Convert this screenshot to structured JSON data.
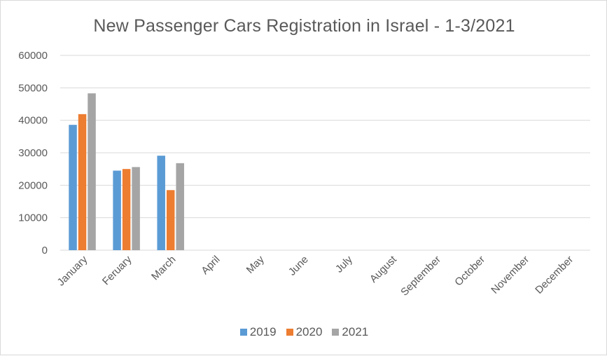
{
  "chart_data": {
    "type": "bar",
    "title": "New Passenger Cars Registration in Israel - 1-3/2021",
    "categories": [
      "January",
      "Feruary",
      "March",
      "April",
      "May",
      "June",
      "July",
      "August",
      "September",
      "October",
      "November",
      "December"
    ],
    "series": [
      {
        "name": "2019",
        "color": "#5B9BD5",
        "values": [
          38600,
          24500,
          29100,
          null,
          null,
          null,
          null,
          null,
          null,
          null,
          null,
          null
        ]
      },
      {
        "name": "2020",
        "color": "#ED7D31",
        "values": [
          41900,
          25000,
          18500,
          null,
          null,
          null,
          null,
          null,
          null,
          null,
          null,
          null
        ]
      },
      {
        "name": "2021",
        "color": "#A5A5A5",
        "values": [
          48300,
          25600,
          26800,
          null,
          null,
          null,
          null,
          null,
          null,
          null,
          null,
          null
        ]
      }
    ],
    "yticks": [
      0,
      10000,
      20000,
      30000,
      40000,
      50000,
      60000
    ],
    "ylim": [
      0,
      60000
    ],
    "grid": true,
    "legend_position": "bottom",
    "xlabel": "",
    "ylabel": ""
  }
}
